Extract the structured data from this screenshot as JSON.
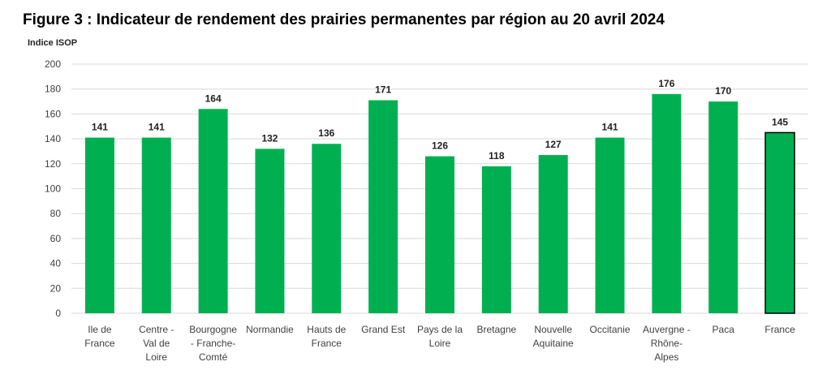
{
  "figure_title": "Figure 3 : Indicateur de rendement des prairies permanentes par région au 20 avril 2024",
  "chart_data": {
    "type": "bar",
    "title": "Figure 3 : Indicateur de rendement des prairies permanentes par région au 20 avril 2024",
    "ylabel": "Indice ISOP",
    "xlabel": "",
    "ylim": [
      0,
      200
    ],
    "yticks": [
      0,
      20,
      40,
      60,
      80,
      100,
      120,
      140,
      160,
      180,
      200
    ],
    "grid": true,
    "categories": [
      [
        "Ile de",
        "France"
      ],
      [
        "Centre -",
        "Val de",
        "Loire"
      ],
      [
        "Bourgogne",
        "- Franche-",
        "Comté"
      ],
      [
        "Normandie"
      ],
      [
        "Hauts de",
        "France"
      ],
      [
        "Grand Est"
      ],
      [
        "Pays de la",
        "Loire"
      ],
      [
        "Bretagne"
      ],
      [
        "Nouvelle",
        "Aquitaine"
      ],
      [
        "Occitanie"
      ],
      [
        "Auvergne -",
        "Rhône-",
        "Alpes"
      ],
      [
        "Paca"
      ],
      [
        "France"
      ]
    ],
    "values": [
      141,
      141,
      164,
      132,
      136,
      171,
      126,
      118,
      127,
      141,
      176,
      170,
      145
    ],
    "colors": {
      "bar": "#00b050",
      "highlight_border": "#000000",
      "grid": "#d9d9d9",
      "axis_text": "#404040",
      "label_text": "#222222"
    },
    "highlighted_category_index": 12
  }
}
